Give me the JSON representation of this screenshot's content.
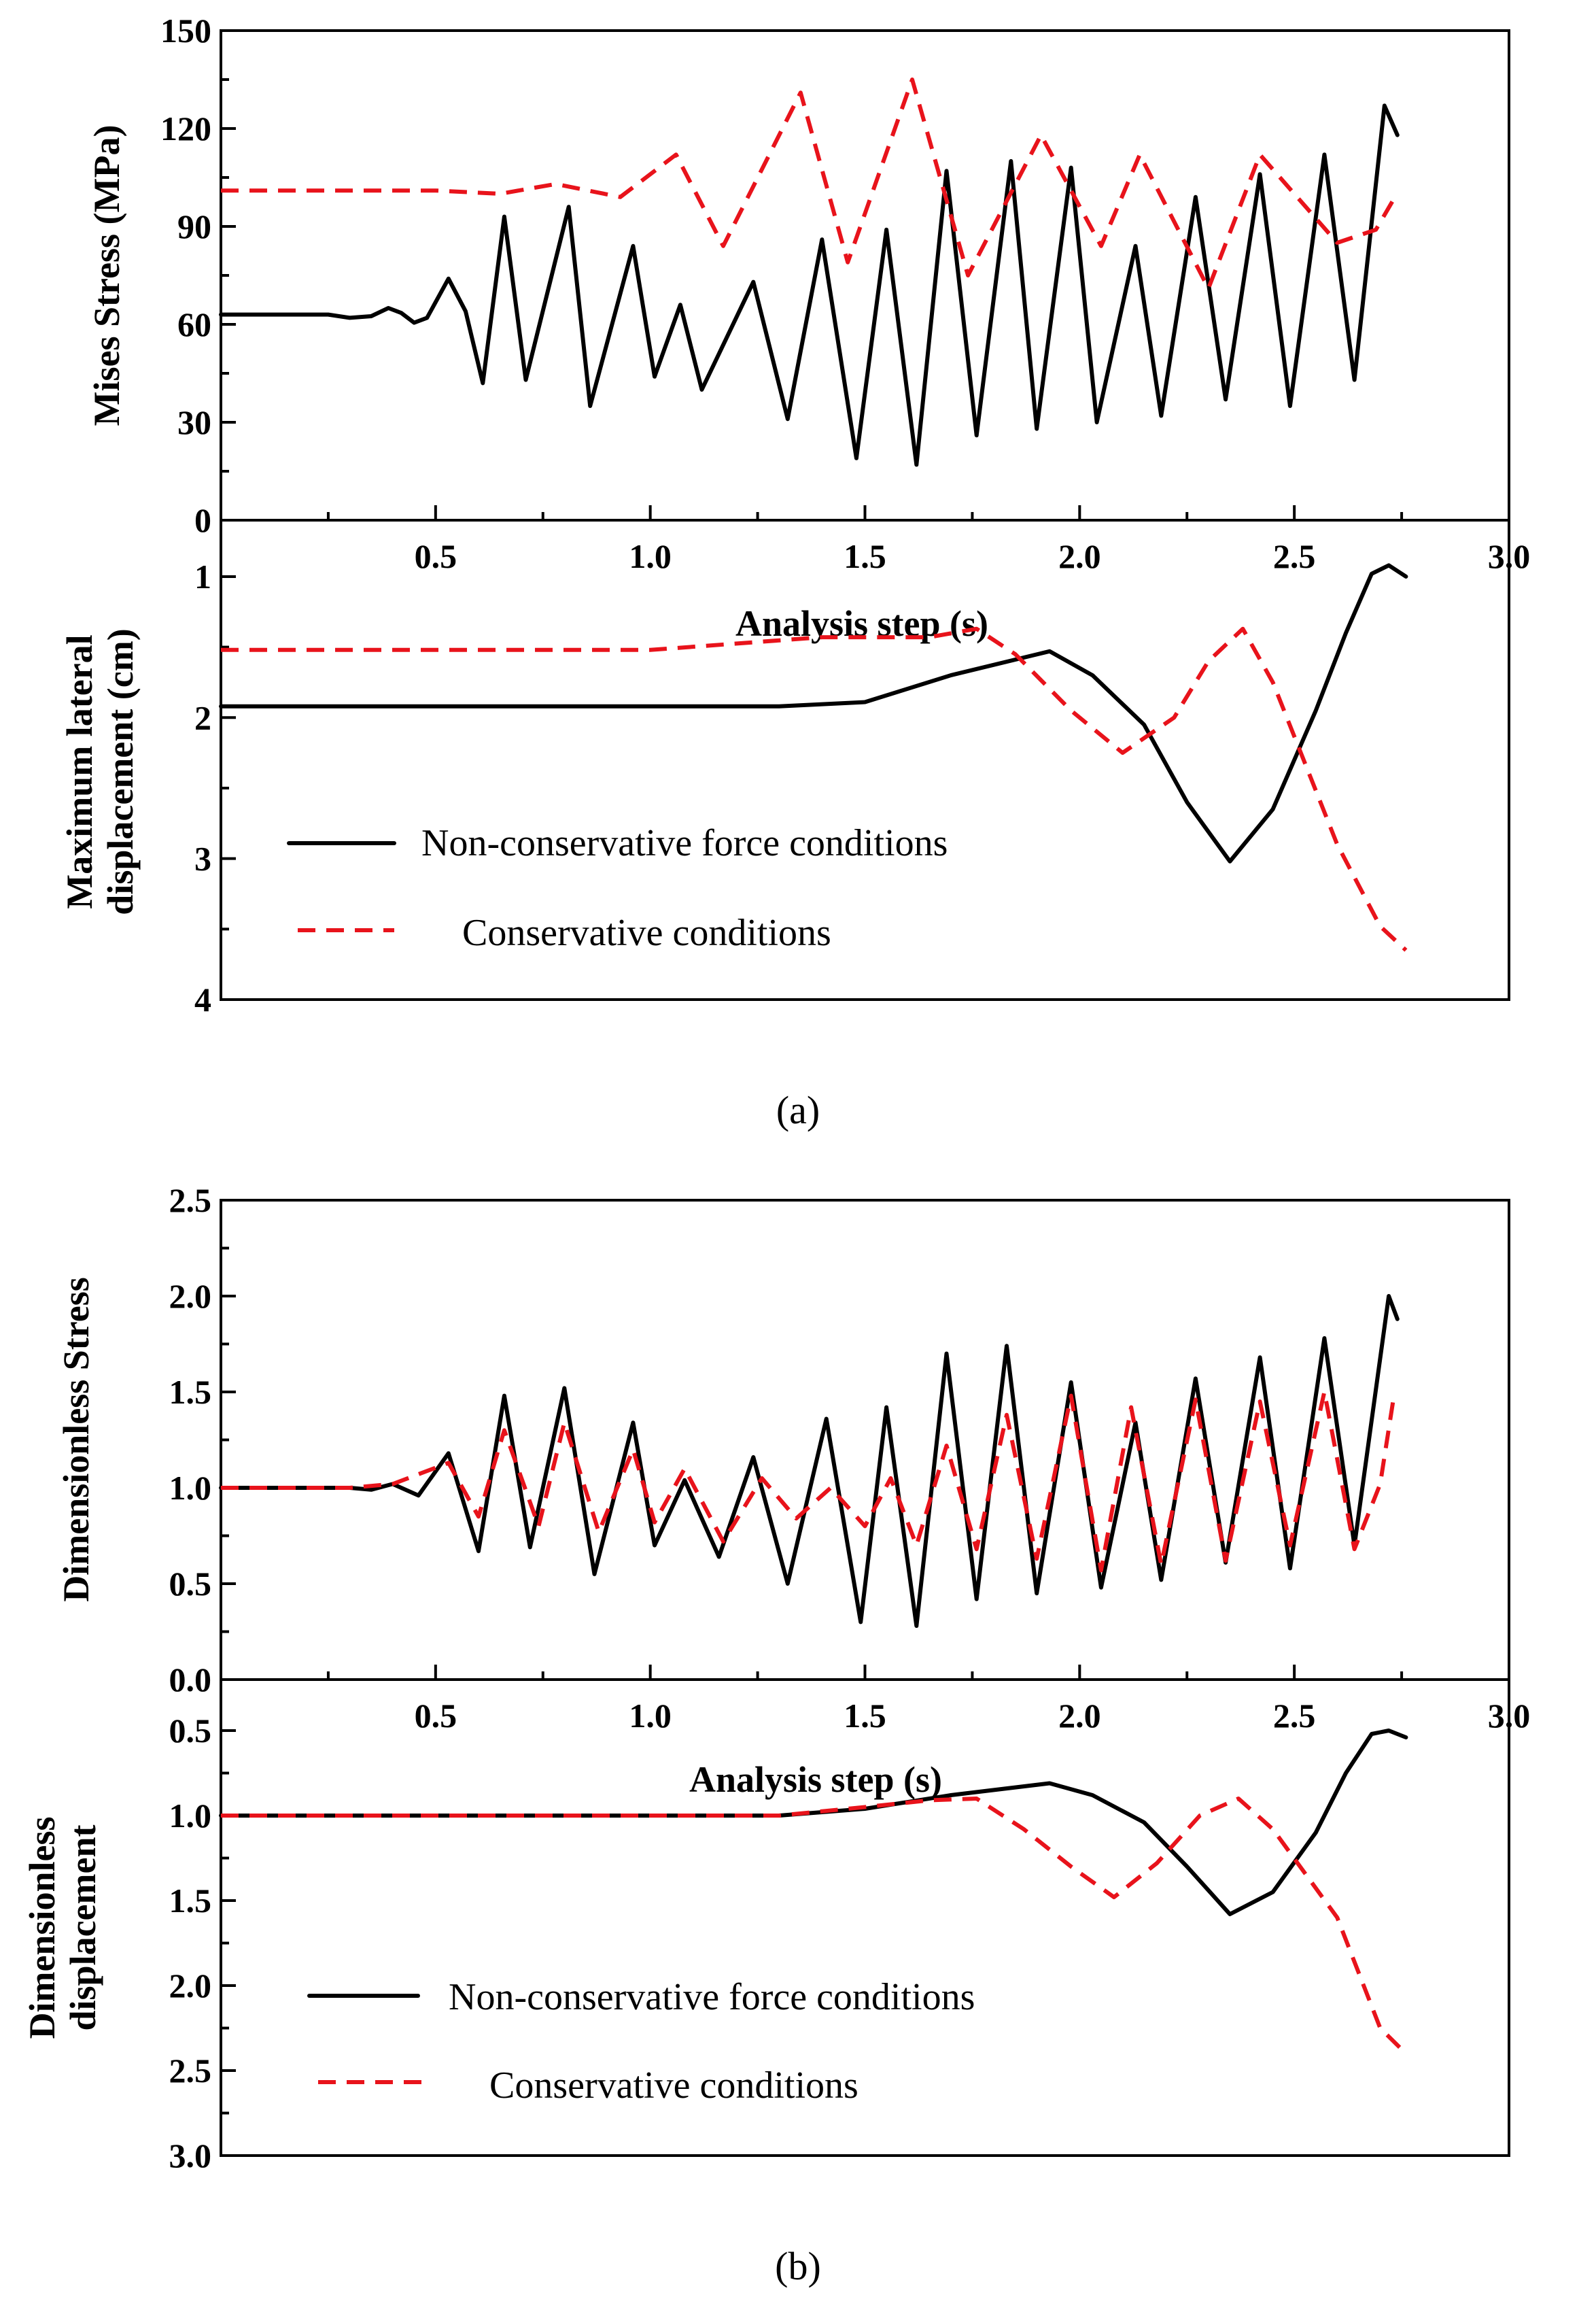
{
  "figure": {
    "legend": {
      "solid_label": "Non-conservative force conditions",
      "dashed_label": "Conservative conditions"
    },
    "panel_a_label": "(a)",
    "panel_b_label": "(b)"
  },
  "chart_data": [
    {
      "id": "a-stress",
      "type": "line",
      "panel": "a",
      "ylabel": "Mises Stress (MPa)",
      "xlabel": "Analysis step  (s)",
      "xlim": [
        0,
        3.0
      ],
      "ylim": [
        0,
        150
      ],
      "x_ticks": [
        "0.5",
        "1.0",
        "1.5",
        "2.0",
        "2.5",
        "3.0"
      ],
      "x_tick_values": [
        0.5,
        1.0,
        1.5,
        2.0,
        2.5,
        3.0
      ],
      "y_ticks": [
        "0",
        "30",
        "60",
        "90",
        "120",
        "150"
      ],
      "y_tick_values": [
        0,
        30,
        60,
        90,
        120,
        150
      ],
      "series": [
        {
          "name": "Non-conservative force conditions",
          "style": "solid",
          "points": [
            [
              0,
              63
            ],
            [
              0.25,
              63
            ],
            [
              0.3,
              62
            ],
            [
              0.35,
              62.5
            ],
            [
              0.39,
              65
            ],
            [
              0.42,
              63.5
            ],
            [
              0.45,
              60.5
            ],
            [
              0.48,
              62
            ],
            [
              0.53,
              74
            ],
            [
              0.57,
              64
            ],
            [
              0.61,
              42
            ],
            [
              0.66,
              93
            ],
            [
              0.71,
              43
            ],
            [
              0.81,
              96
            ],
            [
              0.86,
              35
            ],
            [
              0.96,
              84
            ],
            [
              1.01,
              44
            ],
            [
              1.07,
              66
            ],
            [
              1.12,
              40
            ],
            [
              1.24,
              73
            ],
            [
              1.32,
              31
            ],
            [
              1.4,
              86
            ],
            [
              1.48,
              19
            ],
            [
              1.55,
              89
            ],
            [
              1.62,
              17
            ],
            [
              1.69,
              107
            ],
            [
              1.76,
              26
            ],
            [
              1.84,
              110
            ],
            [
              1.9,
              28
            ],
            [
              1.98,
              108
            ],
            [
              2.04,
              30
            ],
            [
              2.13,
              84
            ],
            [
              2.19,
              32
            ],
            [
              2.27,
              99
            ],
            [
              2.34,
              37
            ],
            [
              2.42,
              106
            ],
            [
              2.49,
              35
            ],
            [
              2.57,
              112
            ],
            [
              2.64,
              43
            ],
            [
              2.71,
              127
            ],
            [
              2.74,
              118
            ]
          ]
        },
        {
          "name": "Conservative conditions",
          "style": "dashed",
          "points": [
            [
              0,
              101
            ],
            [
              0.5,
              101
            ],
            [
              0.65,
              100
            ],
            [
              0.78,
              103
            ],
            [
              0.93,
              99
            ],
            [
              1.06,
              112
            ],
            [
              1.17,
              84
            ],
            [
              1.35,
              131
            ],
            [
              1.46,
              79
            ],
            [
              1.61,
              135
            ],
            [
              1.74,
              75
            ],
            [
              1.91,
              118
            ],
            [
              2.05,
              84
            ],
            [
              2.14,
              112
            ],
            [
              2.3,
              71
            ],
            [
              2.42,
              112
            ],
            [
              2.6,
              85
            ],
            [
              2.69,
              89
            ],
            [
              2.73,
              98
            ]
          ]
        }
      ]
    },
    {
      "id": "a-displacement",
      "type": "line",
      "panel": "a",
      "ylabel_lines": [
        "Maximum lateral",
        "displacement  (cm)"
      ],
      "xlim": [
        0,
        3.0
      ],
      "ylim_inverted": [
        0.6,
        4
      ],
      "y_ticks": [
        "1",
        "2",
        "3",
        "4"
      ],
      "y_tick_values": [
        1,
        2,
        3,
        4
      ],
      "series": [
        {
          "name": "Non-conservative force conditions",
          "style": "solid",
          "points": [
            [
              0,
              1.92
            ],
            [
              1.3,
              1.92
            ],
            [
              1.5,
              1.89
            ],
            [
              1.7,
              1.7
            ],
            [
              1.93,
              1.53
            ],
            [
              2.03,
              1.7
            ],
            [
              2.15,
              2.05
            ],
            [
              2.25,
              2.6
            ],
            [
              2.35,
              3.02
            ],
            [
              2.45,
              2.65
            ],
            [
              2.55,
              1.95
            ],
            [
              2.62,
              1.4
            ],
            [
              2.68,
              0.98
            ],
            [
              2.72,
              0.92
            ],
            [
              2.76,
              1.0
            ]
          ]
        },
        {
          "name": "Conservative conditions",
          "style": "dashed",
          "points": [
            [
              0,
              1.52
            ],
            [
              1.0,
              1.52
            ],
            [
              1.4,
              1.43
            ],
            [
              1.65,
              1.43
            ],
            [
              1.76,
              1.37
            ],
            [
              1.85,
              1.55
            ],
            [
              1.98,
              1.95
            ],
            [
              2.1,
              2.25
            ],
            [
              2.22,
              2.0
            ],
            [
              2.3,
              1.6
            ],
            [
              2.38,
              1.37
            ],
            [
              2.45,
              1.75
            ],
            [
              2.6,
              2.9
            ],
            [
              2.7,
              3.48
            ],
            [
              2.76,
              3.65
            ]
          ]
        }
      ]
    },
    {
      "id": "b-stress",
      "type": "line",
      "panel": "b",
      "ylabel": "Dimensionless Stress",
      "xlabel": "Analysis step  (s)",
      "xlim": [
        0,
        3.0
      ],
      "ylim": [
        0,
        2.5
      ],
      "x_ticks": [
        "0.5",
        "1.0",
        "1.5",
        "2.0",
        "2.5",
        "3.0"
      ],
      "x_tick_values": [
        0.5,
        1.0,
        1.5,
        2.0,
        2.5,
        3.0
      ],
      "y_ticks": [
        "0.0",
        "0.5",
        "1.0",
        "1.5",
        "2.0",
        "2.5"
      ],
      "y_tick_values": [
        0,
        0.5,
        1.0,
        1.5,
        2.0,
        2.5
      ],
      "series": [
        {
          "name": "Non-conservative force conditions",
          "style": "solid",
          "points": [
            [
              0,
              1.0
            ],
            [
              0.3,
              1.0
            ],
            [
              0.35,
              0.99
            ],
            [
              0.4,
              1.02
            ],
            [
              0.46,
              0.96
            ],
            [
              0.53,
              1.18
            ],
            [
              0.6,
              0.67
            ],
            [
              0.66,
              1.48
            ],
            [
              0.72,
              0.69
            ],
            [
              0.8,
              1.52
            ],
            [
              0.87,
              0.55
            ],
            [
              0.96,
              1.34
            ],
            [
              1.01,
              0.7
            ],
            [
              1.08,
              1.04
            ],
            [
              1.16,
              0.64
            ],
            [
              1.24,
              1.16
            ],
            [
              1.32,
              0.5
            ],
            [
              1.41,
              1.36
            ],
            [
              1.49,
              0.3
            ],
            [
              1.55,
              1.42
            ],
            [
              1.62,
              0.28
            ],
            [
              1.69,
              1.7
            ],
            [
              1.76,
              0.42
            ],
            [
              1.83,
              1.74
            ],
            [
              1.9,
              0.45
            ],
            [
              1.98,
              1.55
            ],
            [
              2.05,
              0.48
            ],
            [
              2.13,
              1.34
            ],
            [
              2.19,
              0.52
            ],
            [
              2.27,
              1.57
            ],
            [
              2.34,
              0.61
            ],
            [
              2.42,
              1.68
            ],
            [
              2.49,
              0.58
            ],
            [
              2.57,
              1.78
            ],
            [
              2.64,
              0.7
            ],
            [
              2.72,
              2.0
            ],
            [
              2.74,
              1.88
            ]
          ]
        },
        {
          "name": "Conservative conditions",
          "style": "dashed",
          "points": [
            [
              0,
              1.0
            ],
            [
              0.3,
              1.0
            ],
            [
              0.4,
              1.02
            ],
            [
              0.53,
              1.13
            ],
            [
              0.6,
              0.85
            ],
            [
              0.66,
              1.3
            ],
            [
              0.74,
              0.8
            ],
            [
              0.8,
              1.34
            ],
            [
              0.88,
              0.77
            ],
            [
              0.96,
              1.2
            ],
            [
              1.01,
              0.82
            ],
            [
              1.08,
              1.1
            ],
            [
              1.17,
              0.72
            ],
            [
              1.26,
              1.05
            ],
            [
              1.34,
              0.84
            ],
            [
              1.42,
              1.0
            ],
            [
              1.5,
              0.8
            ],
            [
              1.56,
              1.05
            ],
            [
              1.62,
              0.7
            ],
            [
              1.69,
              1.22
            ],
            [
              1.76,
              0.68
            ],
            [
              1.83,
              1.38
            ],
            [
              1.9,
              0.63
            ],
            [
              1.98,
              1.48
            ],
            [
              2.05,
              0.57
            ],
            [
              2.12,
              1.42
            ],
            [
              2.19,
              0.6
            ],
            [
              2.27,
              1.46
            ],
            [
              2.34,
              0.62
            ],
            [
              2.42,
              1.45
            ],
            [
              2.49,
              0.7
            ],
            [
              2.57,
              1.5
            ],
            [
              2.64,
              0.68
            ],
            [
              2.7,
              1.02
            ],
            [
              2.73,
              1.45
            ]
          ]
        }
      ]
    },
    {
      "id": "b-displacement",
      "type": "line",
      "panel": "b",
      "ylabel_lines": [
        "Dimensionless",
        "displacement"
      ],
      "xlim": [
        0,
        3.0
      ],
      "ylim_inverted": [
        0.2,
        3.0
      ],
      "y_ticks": [
        "0.5",
        "1.0",
        "1.5",
        "2.0",
        "2.5",
        "3.0"
      ],
      "y_tick_values": [
        0.5,
        1.0,
        1.5,
        2.0,
        2.5,
        3.0
      ],
      "series": [
        {
          "name": "Non-conservative force conditions",
          "style": "solid",
          "points": [
            [
              0,
              1.0
            ],
            [
              1.3,
              1.0
            ],
            [
              1.5,
              0.96
            ],
            [
              1.7,
              0.88
            ],
            [
              1.93,
              0.81
            ],
            [
              2.03,
              0.88
            ],
            [
              2.15,
              1.04
            ],
            [
              2.25,
              1.3
            ],
            [
              2.35,
              1.58
            ],
            [
              2.45,
              1.45
            ],
            [
              2.55,
              1.1
            ],
            [
              2.62,
              0.75
            ],
            [
              2.68,
              0.52
            ],
            [
              2.72,
              0.5
            ],
            [
              2.76,
              0.54
            ]
          ]
        },
        {
          "name": "Conservative conditions",
          "style": "dashed",
          "points": [
            [
              0,
              1.0
            ],
            [
              1.3,
              1.0
            ],
            [
              1.5,
              0.95
            ],
            [
              1.65,
              0.91
            ],
            [
              1.76,
              0.9
            ],
            [
              1.87,
              1.08
            ],
            [
              1.98,
              1.3
            ],
            [
              2.08,
              1.48
            ],
            [
              2.18,
              1.28
            ],
            [
              2.28,
              1.0
            ],
            [
              2.37,
              0.9
            ],
            [
              2.45,
              1.08
            ],
            [
              2.6,
              1.6
            ],
            [
              2.7,
              2.25
            ],
            [
              2.76,
              2.4
            ]
          ]
        }
      ]
    }
  ]
}
